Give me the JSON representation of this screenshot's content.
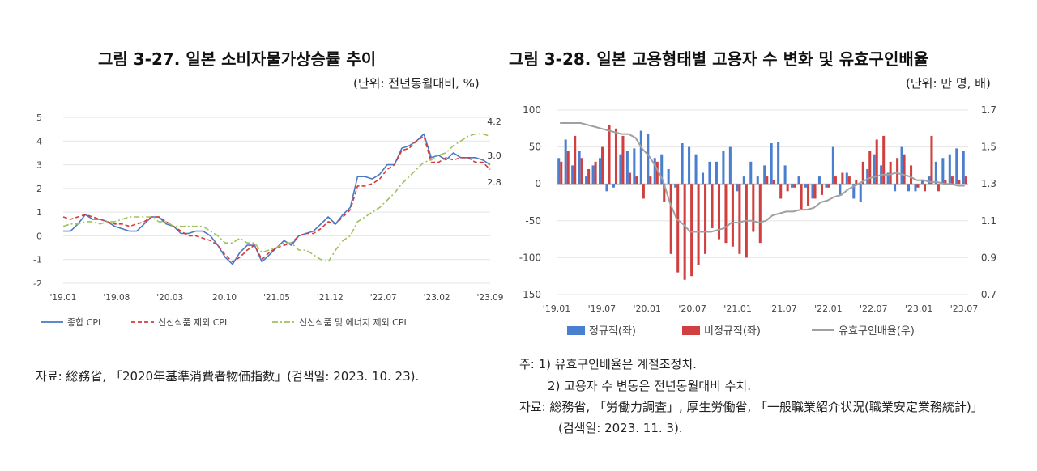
{
  "left": {
    "title": "그림 3-27. 일본 소비자물가상승률 추이",
    "unit": "(단위: 전년동월대비, %)",
    "source": "자료: 総務省, 「2020年基準消費者物価指数」(검색일: 2023. 10. 23).",
    "colors": {
      "s0": "#4a78c5",
      "s1": "#d63a3a",
      "s2": "#9dc35a"
    }
  },
  "right": {
    "title": "그림 3-28. 일본 고용형태별 고용자 수 변화 및 유효구인배율",
    "unit": "(단위: 만 명, 배)",
    "note1": "주: 1) 유효구인배율은 계절조정치.",
    "note2": "2) 고용자 수 변동은 전년동월대비 수치.",
    "source1": "자료: 総務省, 「労働力調査」, 厚生労働省, 「一般職業紹介状況(職業安定業務統計)」",
    "source2": "(검색일: 2023. 11. 3).",
    "colors": {
      "regular": "#4a7fd0",
      "nonregular": "#d04040",
      "ratio": "#a0a0a0"
    }
  },
  "chart_data": [
    {
      "type": "line",
      "title": "그림 3-27. 일본 소비자물가상승률 추이",
      "ylim": [
        -2,
        5
      ],
      "yticks": [
        "5",
        "4",
        "3",
        "2",
        "1",
        "0",
        "-1",
        "-2"
      ],
      "xticks": [
        "'19.01",
        "'19.08",
        "'20.03",
        "'20.10",
        "'21.05",
        "'21.12",
        "'22.07",
        "'23.02",
        "'23.09"
      ],
      "annotations": [
        "4.2",
        "3.0",
        "2.8"
      ],
      "legend": [
        "종합 CPI",
        "신선식품 제외 CPI",
        "신선식품 및 에너지 제외 CPI"
      ],
      "series": [
        {
          "name": "종합 CPI",
          "values": [
            0.2,
            0.2,
            0.5,
            0.9,
            0.7,
            0.7,
            0.6,
            0.4,
            0.3,
            0.2,
            0.2,
            0.5,
            0.8,
            0.8,
            0.5,
            0.4,
            0.1,
            0.1,
            0.2,
            0.2,
            0.0,
            -0.4,
            -0.9,
            -1.2,
            -0.7,
            -0.4,
            -0.4,
            -1.1,
            -0.8,
            -0.5,
            -0.2,
            -0.4,
            0.0,
            0.1,
            0.2,
            0.5,
            0.8,
            0.5,
            0.9,
            1.2,
            2.5,
            2.5,
            2.4,
            2.6,
            3.0,
            3.0,
            3.7,
            3.8,
            4.0,
            4.3,
            3.3,
            3.4,
            3.2,
            3.5,
            3.3,
            3.3,
            3.3,
            3.2,
            3.0
          ]
        },
        {
          "name": "신선식품 제외 CPI",
          "values": [
            0.8,
            0.7,
            0.8,
            0.9,
            0.8,
            0.7,
            0.6,
            0.5,
            0.5,
            0.4,
            0.5,
            0.6,
            0.8,
            0.8,
            0.6,
            0.4,
            0.2,
            0.0,
            0.0,
            -0.1,
            -0.2,
            -0.4,
            -0.8,
            -1.1,
            -0.9,
            -0.6,
            -0.4,
            -1.0,
            -0.7,
            -0.5,
            -0.4,
            -0.3,
            0.0,
            0.1,
            0.1,
            0.3,
            0.6,
            0.5,
            0.8,
            1.1,
            2.1,
            2.1,
            2.2,
            2.4,
            2.8,
            3.0,
            3.6,
            3.7,
            4.0,
            4.2,
            3.1,
            3.1,
            3.3,
            3.2,
            3.3,
            3.3,
            3.1,
            3.1,
            2.8
          ]
        },
        {
          "name": "신선식품 및 에너지 제외 CPI",
          "values": [
            0.4,
            0.5,
            0.5,
            0.6,
            0.6,
            0.5,
            0.6,
            0.6,
            0.7,
            0.8,
            0.8,
            0.8,
            0.8,
            0.6,
            0.6,
            0.4,
            0.4,
            0.4,
            0.4,
            0.4,
            0.2,
            0.0,
            -0.3,
            -0.3,
            -0.1,
            -0.3,
            -0.3,
            -0.7,
            -0.6,
            -0.5,
            -0.3,
            -0.3,
            -0.6,
            -0.6,
            -0.8,
            -1.0,
            -1.1,
            -0.6,
            -0.2,
            0.0,
            0.6,
            0.8,
            1.0,
            1.2,
            1.5,
            1.8,
            2.2,
            2.5,
            2.8,
            3.1,
            3.2,
            3.4,
            3.5,
            3.8,
            4.0,
            4.2,
            4.3,
            4.3,
            4.2
          ]
        }
      ]
    },
    {
      "type": "bar",
      "title": "그림 3-28. 일본 고용형태별 고용자 수 변화 및 유효구인배율",
      "ylim": [
        -150,
        100
      ],
      "y2lim": [
        0.7,
        1.7
      ],
      "yticks": [
        "100",
        "50",
        "0",
        "-50",
        "-100",
        "-150"
      ],
      "y2ticks": [
        "1.7",
        "1.5",
        "1.3",
        "1.1",
        "0.9",
        "0.7"
      ],
      "xticks": [
        "'19.01",
        "'19.07",
        "'20.01",
        "'20.07",
        "'21.01",
        "'21.07",
        "'22.01",
        "'22.07",
        "'23.01",
        "'23.07"
      ],
      "legend": [
        "정규직(좌)",
        "비정규직(좌)",
        "유효구인배율(우)"
      ],
      "series": [
        {
          "name": "정규직(좌)",
          "values": [
            35,
            60,
            25,
            45,
            10,
            25,
            35,
            -10,
            -5,
            40,
            45,
            48,
            72,
            68,
            35,
            40,
            20,
            -5,
            55,
            50,
            40,
            15,
            30,
            30,
            45,
            50,
            -10,
            10,
            30,
            10,
            25,
            55,
            57,
            25,
            -5,
            10,
            -5,
            -20,
            10,
            -5,
            50,
            -15,
            15,
            -20,
            -25,
            20,
            40,
            25,
            15,
            -10,
            50,
            -10,
            -10,
            5,
            10,
            30,
            35,
            40,
            48,
            45
          ]
        },
        {
          "name": "비정규직(좌)",
          "values": [
            30,
            45,
            65,
            35,
            20,
            30,
            50,
            80,
            75,
            65,
            15,
            10,
            -20,
            10,
            30,
            -25,
            -95,
            -120,
            -130,
            -125,
            -110,
            -95,
            -60,
            -75,
            -80,
            -85,
            -95,
            -100,
            -65,
            -80,
            10,
            5,
            -20,
            -10,
            -5,
            -35,
            -30,
            -20,
            -15,
            -5,
            10,
            15,
            10,
            5,
            30,
            45,
            60,
            65,
            30,
            35,
            40,
            25,
            -5,
            -10,
            65,
            -10,
            5,
            10,
            5,
            10
          ]
        },
        {
          "name": "유효구인배율(우)",
          "values": [
            1.63,
            1.63,
            1.63,
            1.63,
            1.62,
            1.61,
            1.6,
            1.59,
            1.58,
            1.57,
            1.57,
            1.55,
            1.49,
            1.45,
            1.39,
            1.32,
            1.2,
            1.11,
            1.08,
            1.04,
            1.04,
            1.04,
            1.04,
            1.05,
            1.06,
            1.09,
            1.09,
            1.1,
            1.1,
            1.09,
            1.1,
            1.13,
            1.14,
            1.15,
            1.15,
            1.16,
            1.16,
            1.17,
            1.2,
            1.21,
            1.23,
            1.24,
            1.27,
            1.29,
            1.31,
            1.33,
            1.34,
            1.35,
            1.35,
            1.36,
            1.35,
            1.34,
            1.32,
            1.32,
            1.31,
            1.31,
            1.3,
            1.3,
            1.29,
            1.29
          ]
        }
      ]
    }
  ]
}
